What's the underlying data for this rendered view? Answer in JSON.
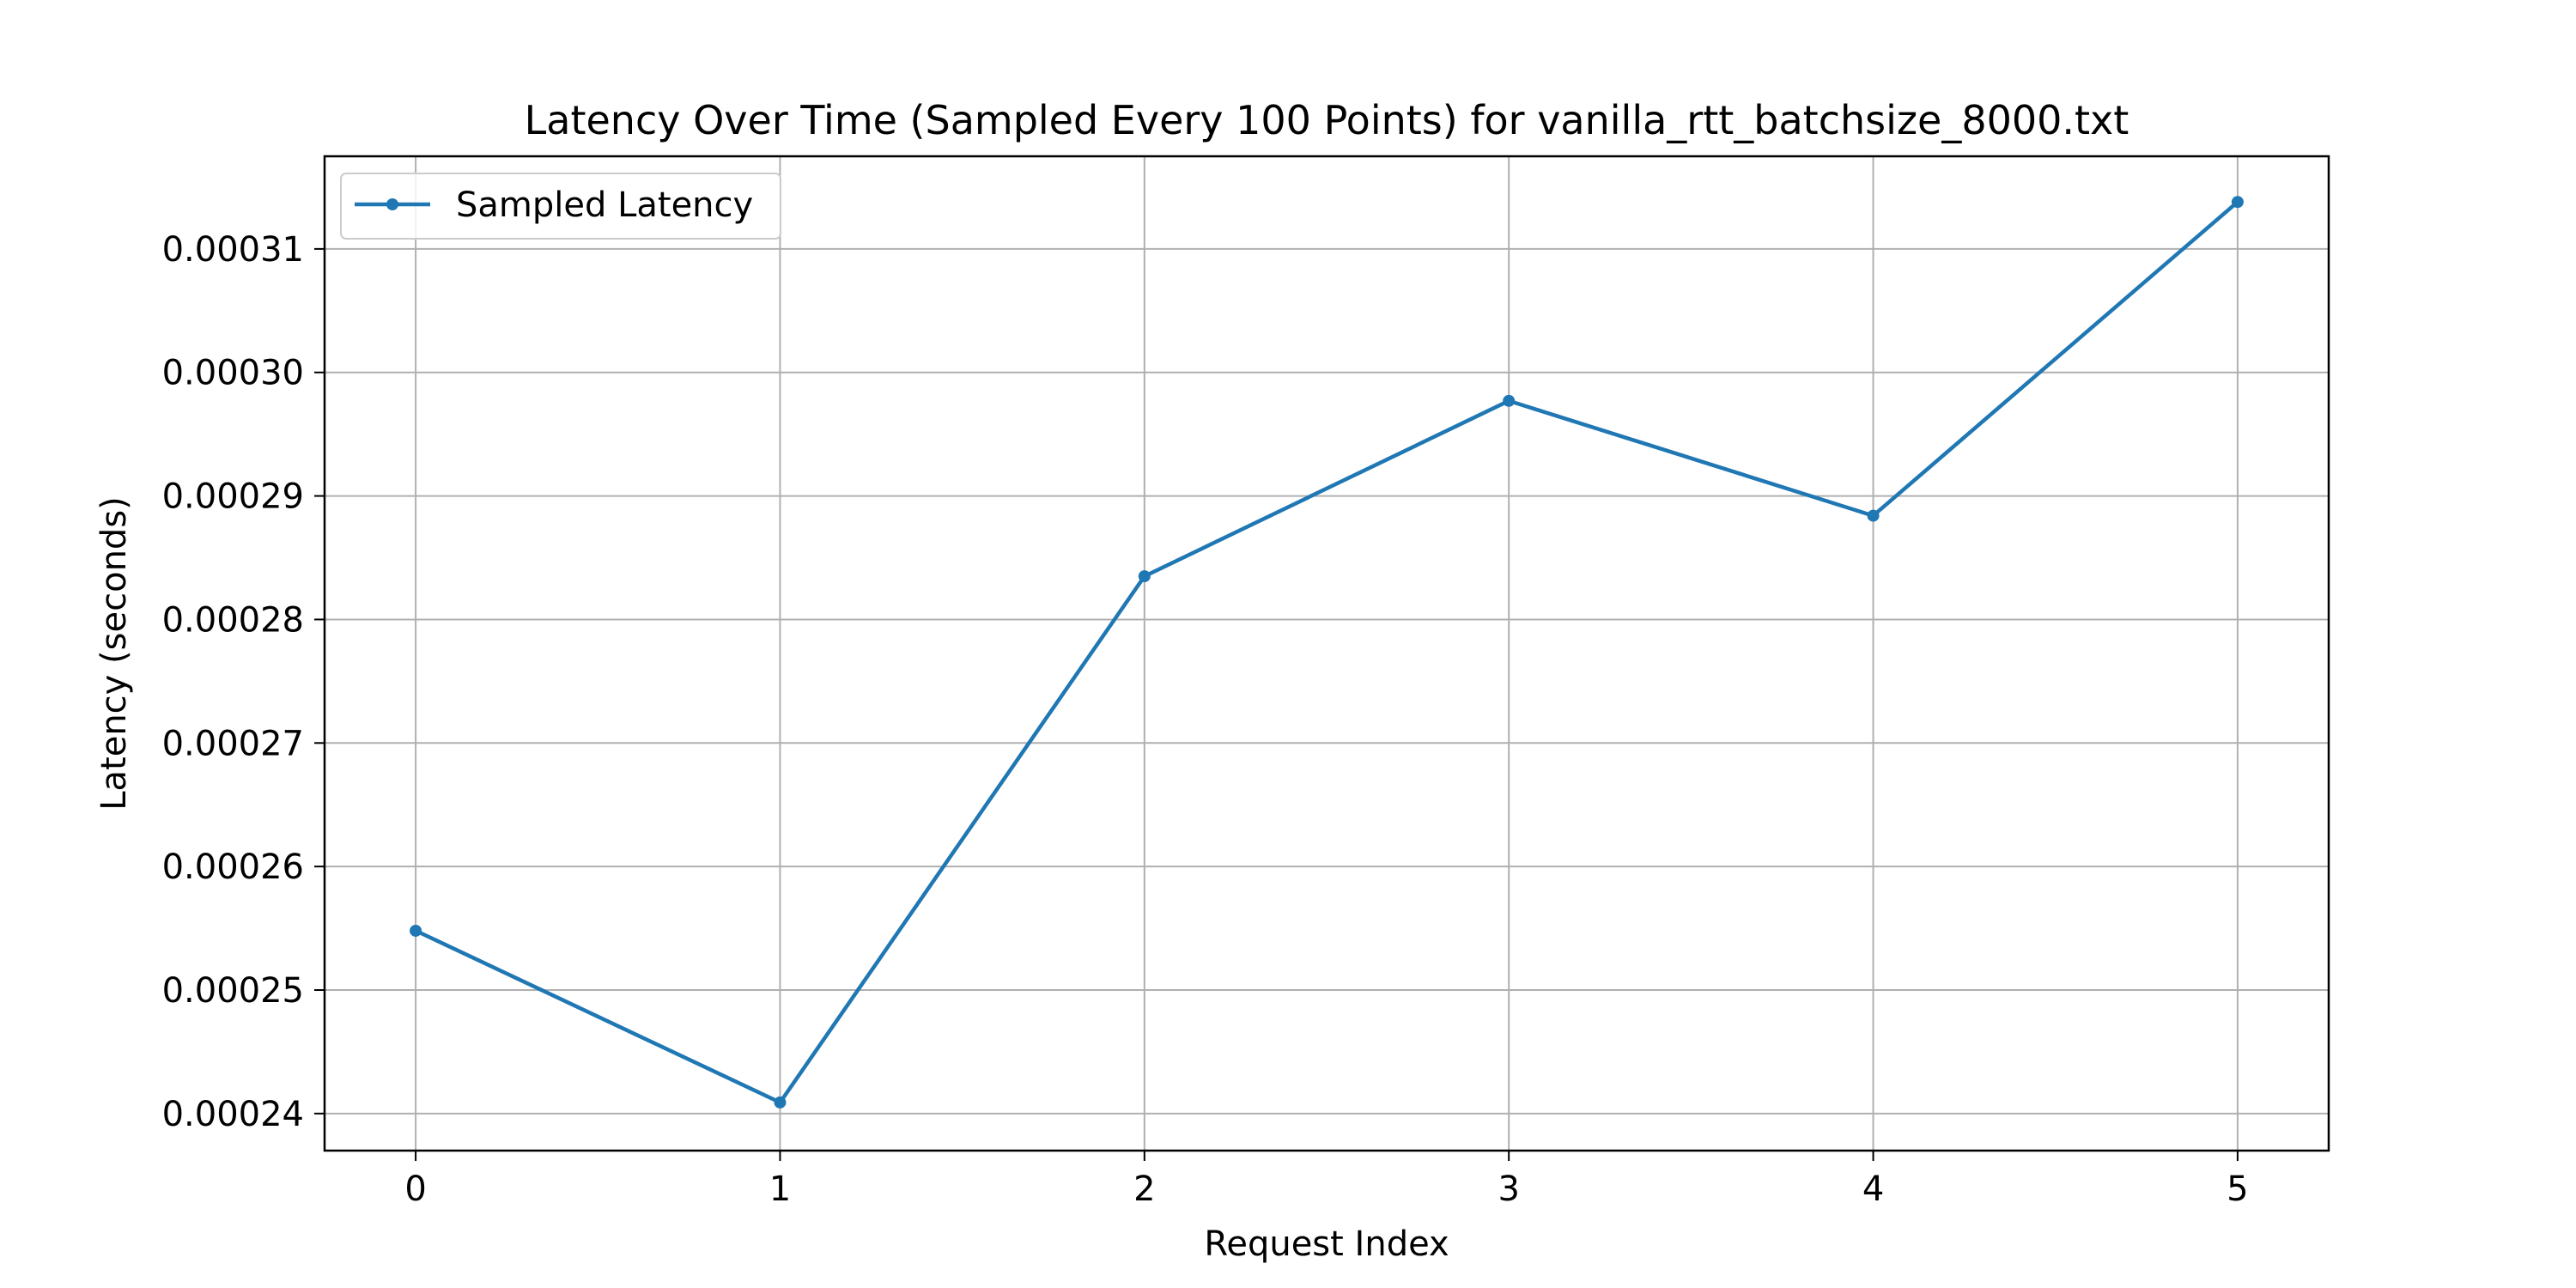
{
  "chart_data": {
    "type": "line",
    "title": "Latency Over Time (Sampled Every 100 Points) for vanilla_rtt_batchsize_8000.txt",
    "xlabel": "Request Index",
    "ylabel": "Latency (seconds)",
    "x_ticks": [
      "0",
      "1",
      "2",
      "3",
      "4",
      "5"
    ],
    "y_ticks": [
      "0.00024",
      "0.00025",
      "0.00026",
      "0.00027",
      "0.00028",
      "0.00029",
      "0.00030",
      "0.00031"
    ],
    "xlim": [
      -0.25,
      5.25
    ],
    "ylim": [
      0.000237,
      0.0003175
    ],
    "grid": true,
    "legend_position": "top-left",
    "series": [
      {
        "name": "Sampled Latency",
        "color": "#1f77b4",
        "marker": "circle",
        "x": [
          0,
          1,
          2,
          3,
          4,
          5
        ],
        "y": [
          0.0002548,
          0.0002409,
          0.0002835,
          0.0002977,
          0.0002884,
          0.0003138
        ]
      }
    ]
  }
}
